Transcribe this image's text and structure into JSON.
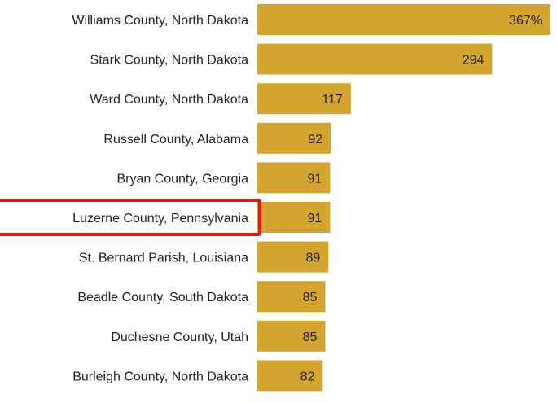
{
  "chart_data": {
    "type": "bar",
    "orientation": "horizontal",
    "categories": [
      "Williams County, North Dakota",
      "Stark County, North Dakota",
      "Ward County, North Dakota",
      "Russell County, Alabama",
      "Bryan County, Georgia",
      "Luzerne County, Pennsylvania",
      "St. Bernard Parish, Louisiana",
      "Beadle County, South Dakota",
      "Duchesne County, Utah",
      "Burleigh County, North Dakota"
    ],
    "values": [
      367,
      294,
      117,
      92,
      91,
      91,
      89,
      85,
      85,
      82
    ],
    "value_labels": [
      "367%",
      "294",
      "117",
      "92",
      "91",
      "91",
      "89",
      "85",
      "85",
      "82"
    ],
    "highlighted_category": "Luzerne County, Pennsylvania",
    "xlim": [
      0,
      367
    ],
    "bar_color": "#d4a52e",
    "highlight_color": "#e0181c",
    "grid": false,
    "legend": "none"
  }
}
